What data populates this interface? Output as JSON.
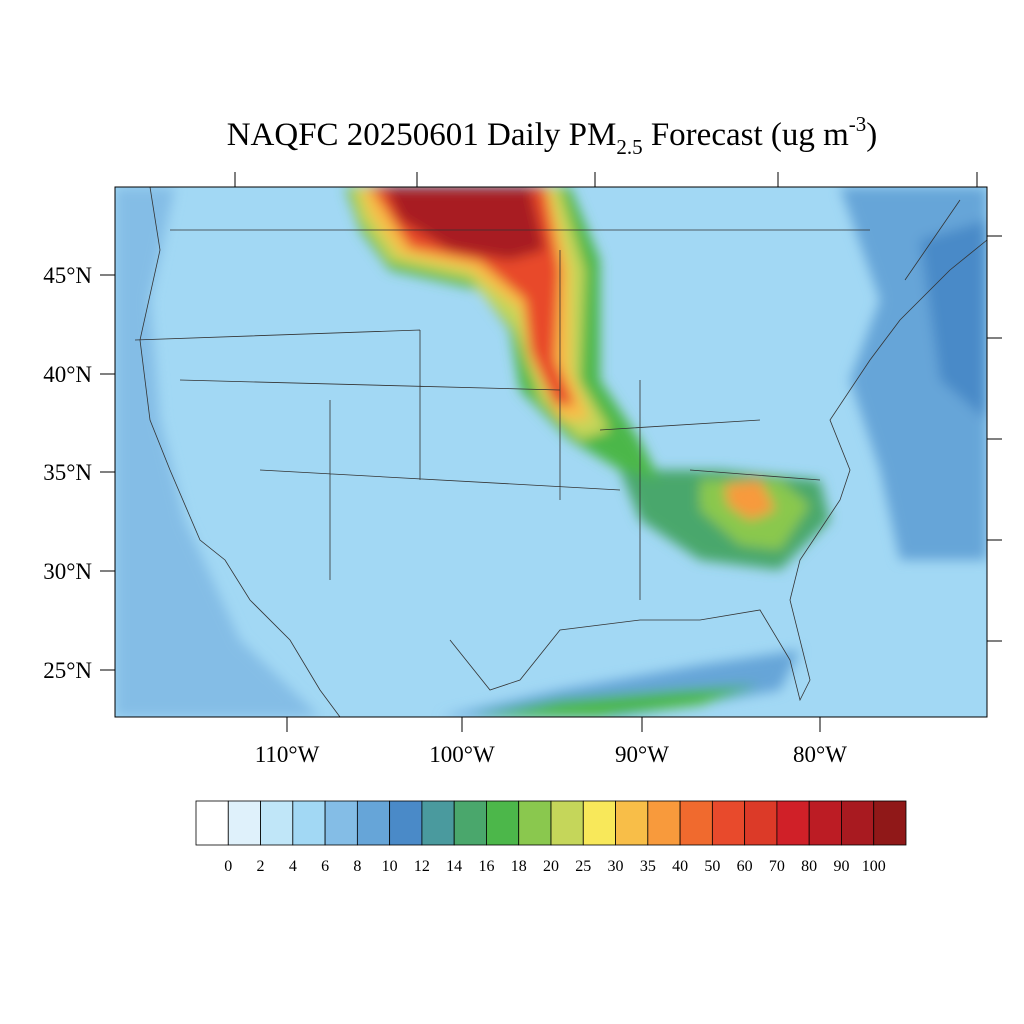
{
  "title": {
    "main": "NAQFC 20250601 Daily PM",
    "subscript": "2.5",
    "middle": " Forecast (ug m",
    "superscript": "-3",
    "end": ")"
  },
  "latitude_labels": [
    "45°N",
    "40°N",
    "35°N",
    "30°N",
    "25°N"
  ],
  "longitude_labels": [
    "110°W",
    "100°W",
    "90°W",
    "80°W"
  ],
  "colorbar": {
    "ticks": [
      0,
      2,
      4,
      6,
      8,
      10,
      12,
      14,
      16,
      18,
      20,
      25,
      30,
      35,
      40,
      50,
      60,
      70,
      80,
      90,
      100
    ],
    "colors": [
      "#ffffff",
      "#dff1fb",
      "#c0e6f8",
      "#a2d8f4",
      "#84bde6",
      "#66a5d8",
      "#4a8ac8",
      "#4a9a9e",
      "#4aa76c",
      "#4cb74a",
      "#8ac84e",
      "#c5d65a",
      "#f8e85a",
      "#f8be48",
      "#f89a3c",
      "#f06a2e",
      "#e84a2c",
      "#dc3a28",
      "#d02028",
      "#bc1c24",
      "#a81a20",
      "#901818"
    ]
  }
}
